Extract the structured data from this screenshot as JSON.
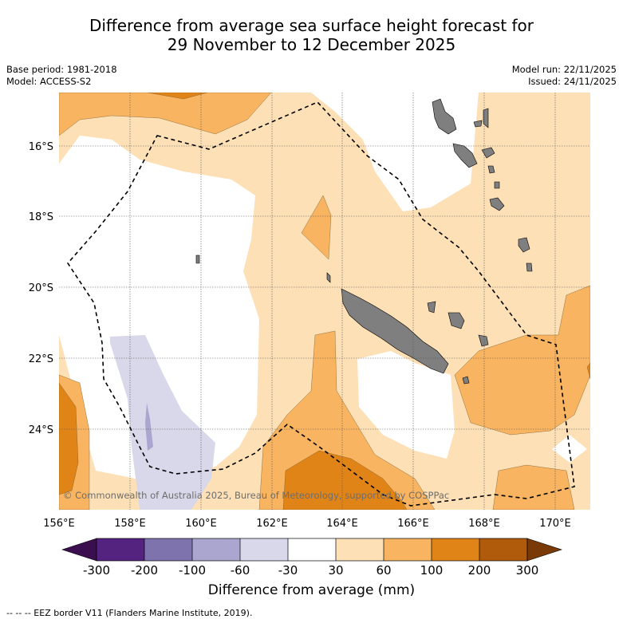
{
  "title": {
    "line1": "Difference from average sea surface height forecast for",
    "line2": "29 November to 12 December 2025"
  },
  "meta": {
    "base_period": "Base period: 1981-2018",
    "model": "Model: ACCESS-S2",
    "model_run": "Model run: 22/11/2025",
    "issued": "Issued: 24/11/2025"
  },
  "map": {
    "lon_range": [
      156,
      171
    ],
    "lat_range": [
      -26.3,
      -14.6
    ],
    "lon_ticks": [
      {
        "value": 156,
        "label": "156°E"
      },
      {
        "value": 158,
        "label": "158°E"
      },
      {
        "value": 160,
        "label": "160°E"
      },
      {
        "value": 162,
        "label": "162°E"
      },
      {
        "value": 164,
        "label": "164°E"
      },
      {
        "value": 166,
        "label": "166°E"
      },
      {
        "value": 168,
        "label": "168°E"
      },
      {
        "value": 170,
        "label": "170°E"
      }
    ],
    "lat_ticks": [
      {
        "value": -16,
        "label": "16°S"
      },
      {
        "value": -18,
        "label": "18°S"
      },
      {
        "value": -20,
        "label": "20°S"
      },
      {
        "value": -22,
        "label": "22°S"
      },
      {
        "value": -24,
        "label": "24°S"
      }
    ],
    "credit": "© Commonwealth of Australia 2025, Bureau of Meteorology, supported by COSPPac"
  },
  "colorbar": {
    "ticks": [
      "-300",
      "-200",
      "-100",
      "-60",
      "-30",
      "30",
      "60",
      "100",
      "200",
      "300"
    ],
    "colors": [
      "#3b0f4f",
      "#54237f",
      "#7f73ad",
      "#aba6cf",
      "#d8d8ea",
      "#ffffff",
      "#fde0b6",
      "#f8b460",
      "#e08418",
      "#b05a0c",
      "#7a3a08"
    ],
    "label": "Difference from average (mm)"
  },
  "footnote": "--  --  -- EEZ border V11 (Flanders Marine Institute, 2019)."
}
